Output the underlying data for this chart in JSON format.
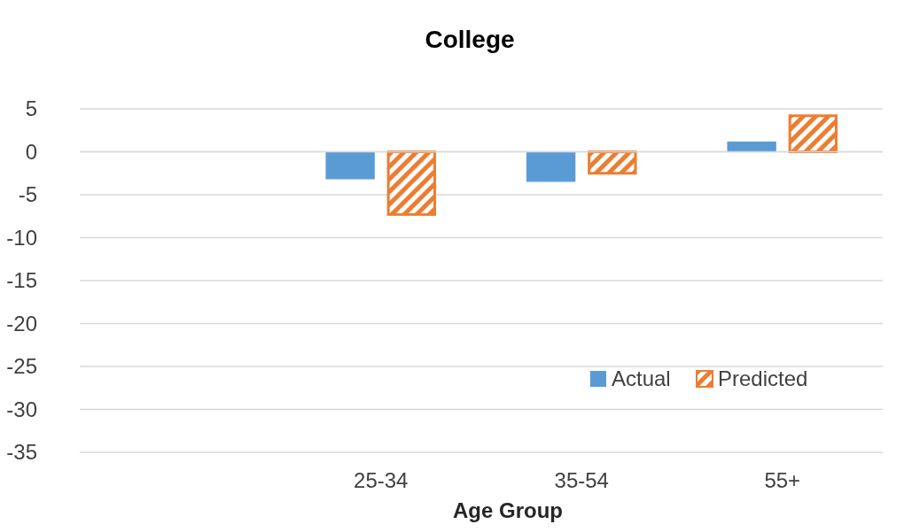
{
  "chart_data": {
    "type": "bar",
    "title": "College",
    "xlabel": "Age Group",
    "categories": [
      null,
      "25-34",
      "35-54",
      "55+"
    ],
    "series": [
      {
        "name": "Actual",
        "color": "#5b9bd5",
        "values": [
          null,
          -3.2,
          -3.5,
          1.2
        ]
      },
      {
        "name": "Predicted",
        "color": "#ed7d31",
        "values": [
          null,
          -7.3,
          -2.5,
          4.2
        ]
      }
    ],
    "ylim": [
      -35,
      5
    ],
    "yticks": [
      -35,
      -30,
      -25,
      -20,
      -15,
      -10,
      -5,
      0,
      5
    ],
    "grid": "y",
    "legend": "bottom right"
  }
}
